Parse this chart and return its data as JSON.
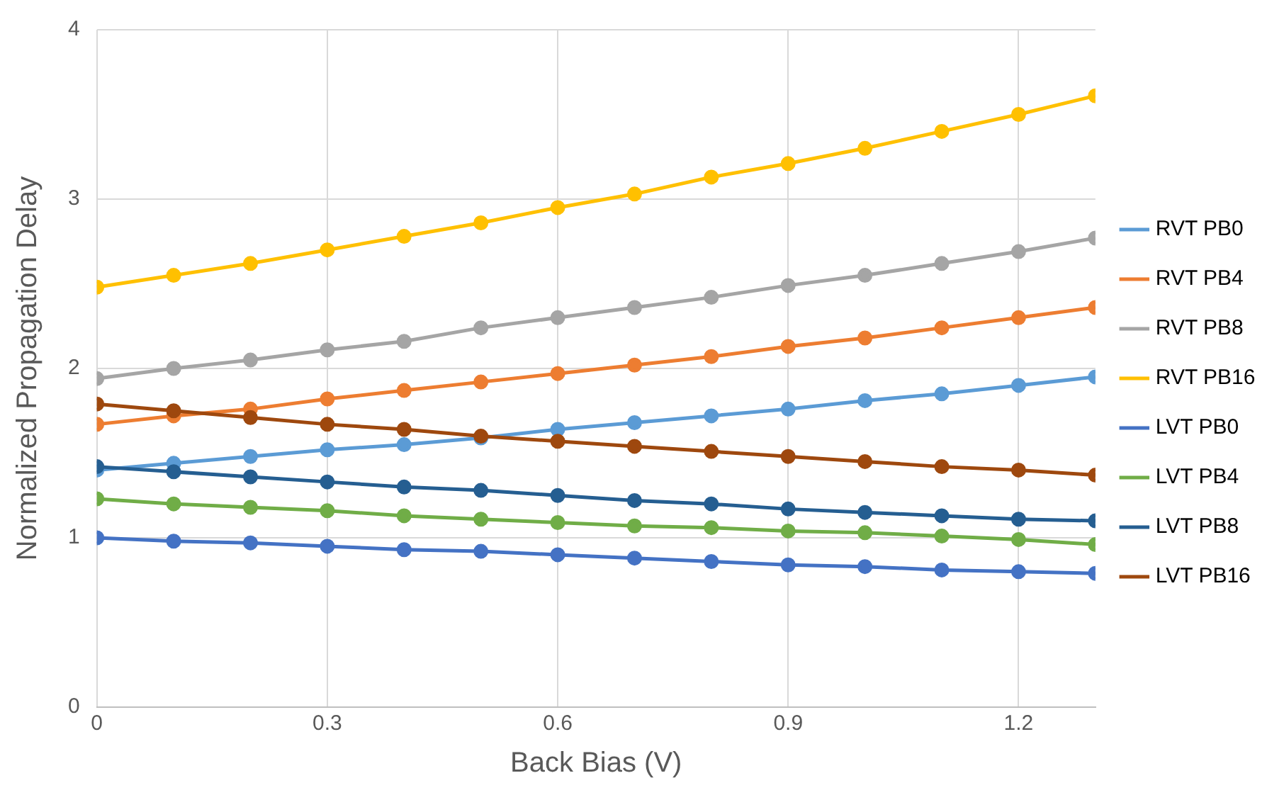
{
  "chart_data": {
    "type": "line",
    "xlabel": "Back Bias (V)",
    "ylabel": "Normalized Propagation Delay",
    "x": [
      0,
      0.1,
      0.2,
      0.3,
      0.4,
      0.5,
      0.6,
      0.7,
      0.8,
      0.9,
      1.0,
      1.1,
      1.2,
      1.3
    ],
    "xlim": [
      0,
      1.3
    ],
    "xticks": [
      0,
      0.3,
      0.6,
      0.9,
      1.2
    ],
    "ylim": [
      0,
      4
    ],
    "yticks": [
      0,
      1,
      2,
      3,
      4
    ],
    "grid": true,
    "legend": "right",
    "marker": "circle",
    "line_style": "solid",
    "series": [
      {
        "name": "RVT PB0",
        "color": "#5b9bd5",
        "values": [
          1.4,
          1.44,
          1.48,
          1.52,
          1.55,
          1.59,
          1.64,
          1.68,
          1.72,
          1.76,
          1.81,
          1.85,
          1.9,
          1.95
        ]
      },
      {
        "name": "RVT PB4",
        "color": "#ed7d31",
        "values": [
          1.67,
          1.72,
          1.76,
          1.82,
          1.87,
          1.92,
          1.97,
          2.02,
          2.07,
          2.13,
          2.18,
          2.24,
          2.3,
          2.36
        ]
      },
      {
        "name": "RVT PB8",
        "color": "#a5a5a5",
        "values": [
          1.94,
          2.0,
          2.05,
          2.11,
          2.16,
          2.24,
          2.3,
          2.36,
          2.42,
          2.49,
          2.55,
          2.62,
          2.69,
          2.77
        ]
      },
      {
        "name": "RVT PB16",
        "color": "#ffc000",
        "values": [
          2.48,
          2.55,
          2.62,
          2.7,
          2.78,
          2.86,
          2.95,
          3.03,
          3.13,
          3.21,
          3.3,
          3.4,
          3.5,
          3.61
        ]
      },
      {
        "name": "LVT PB0",
        "color": "#4472c4",
        "values": [
          1.0,
          0.98,
          0.97,
          0.95,
          0.93,
          0.92,
          0.9,
          0.88,
          0.86,
          0.84,
          0.83,
          0.81,
          0.8,
          0.79
        ]
      },
      {
        "name": "LVT PB4",
        "color": "#70ad47",
        "values": [
          1.23,
          1.2,
          1.18,
          1.16,
          1.13,
          1.11,
          1.09,
          1.07,
          1.06,
          1.04,
          1.03,
          1.01,
          0.99,
          0.96
        ]
      },
      {
        "name": "LVT PB8",
        "color": "#255e91",
        "values": [
          1.42,
          1.39,
          1.36,
          1.33,
          1.3,
          1.28,
          1.25,
          1.22,
          1.2,
          1.17,
          1.15,
          1.13,
          1.11,
          1.1
        ]
      },
      {
        "name": "LVT PB16",
        "color": "#9e480e",
        "values": [
          1.79,
          1.75,
          1.71,
          1.67,
          1.64,
          1.6,
          1.57,
          1.54,
          1.51,
          1.48,
          1.45,
          1.42,
          1.4,
          1.37
        ]
      }
    ]
  }
}
